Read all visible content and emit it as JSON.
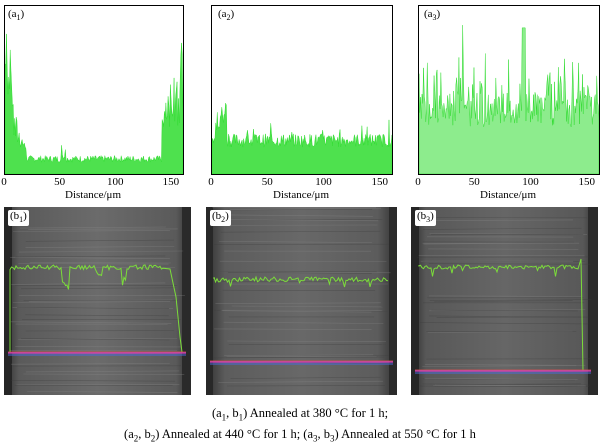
{
  "figure": {
    "xlabel": "Distance/μm",
    "xticks": [
      "0",
      "50",
      "100",
      "150"
    ],
    "xlim": [
      0,
      160
    ],
    "line_color": "#2fdc2f",
    "panels_top": [
      {
        "label_main": "(a",
        "label_sub": "1",
        "label_end": ")",
        "profile": "edges-high"
      },
      {
        "label_main": "(a",
        "label_sub": "2",
        "label_end": ")",
        "profile": "low-flat"
      },
      {
        "label_main": "(a",
        "label_sub": "3",
        "label_end": ")",
        "profile": "high-noisy"
      }
    ],
    "panels_bottom": [
      {
        "label_main": "(b",
        "label_sub": "1",
        "label_end": ")"
      },
      {
        "label_main": "(b",
        "label_sub": "2",
        "label_end": ")"
      },
      {
        "label_main": "(b",
        "label_sub": "3",
        "label_end": ")"
      }
    ]
  },
  "caption": {
    "line1_parts": [
      "(a",
      "1",
      ", b",
      "1",
      ") Annealed at 380 °C for 1 h;"
    ],
    "line2_parts": [
      "(a",
      "2",
      ", b",
      "2",
      ") Annealed at 440 °C for 1 h; (a",
      "3",
      ", b",
      "3",
      ") Annealed at 550 °C for 1 h"
    ]
  }
}
